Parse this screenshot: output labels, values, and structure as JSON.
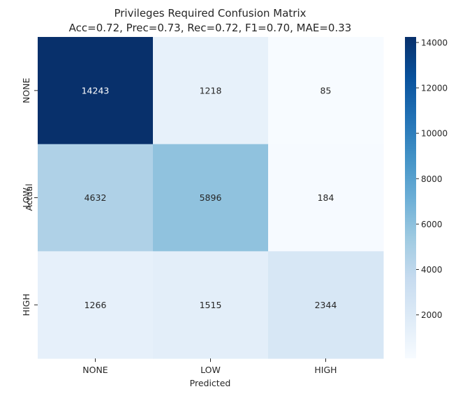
{
  "chart_data": {
    "type": "heatmap",
    "title": "Privileges Required Confusion Matrix",
    "subtitle": "Acc=0.72, Prec=0.73, Rec=0.72, F1=0.70, MAE=0.33",
    "xlabel": "Predicted",
    "ylabel": "Actual",
    "x_categories": [
      "NONE",
      "LOW",
      "HIGH"
    ],
    "y_categories": [
      "NONE",
      "LOW",
      "HIGH"
    ],
    "values": [
      [
        14243,
        1218,
        85
      ],
      [
        4632,
        5896,
        184
      ],
      [
        1266,
        1515,
        2344
      ]
    ],
    "colormap": "Blues",
    "colorbar": {
      "range": [
        85,
        14243
      ],
      "ticks": [
        2000,
        4000,
        6000,
        8000,
        10000,
        12000,
        14000
      ]
    },
    "grid": false
  }
}
